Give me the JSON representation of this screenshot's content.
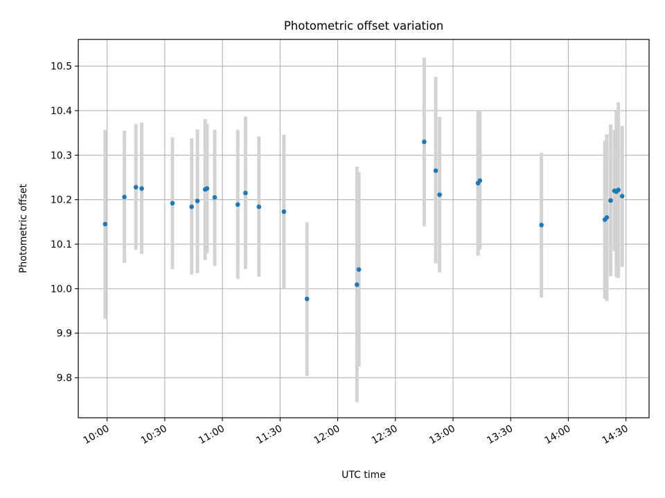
{
  "chart_data": {
    "type": "scatter",
    "title": "Photometric offset variation",
    "xlabel": "UTC time",
    "ylabel": "Photometric offset",
    "grid": true,
    "legend": "none",
    "xlim": [
      "09:45",
      "14:42"
    ],
    "ylim": [
      9.71,
      10.56
    ],
    "x_ticks": [
      "10:00",
      "10:30",
      "11:00",
      "11:30",
      "12:00",
      "12:30",
      "13:00",
      "13:30",
      "14:00",
      "14:30"
    ],
    "y_ticks": [
      9.8,
      9.9,
      10.0,
      10.1,
      10.2,
      10.3,
      10.4,
      10.5
    ],
    "y_tick_labels": [
      "9.8",
      "9.9",
      "10.0",
      "10.1",
      "10.2",
      "10.3",
      "10.4",
      "10.5"
    ],
    "colors": {
      "points": "#1f77b4",
      "errorbars": "#d3d3d3",
      "grid": "#b0b0b0"
    },
    "points": [
      {
        "x": "09:59",
        "y": 10.145,
        "low": 9.932,
        "high": 10.357
      },
      {
        "x": "10:09",
        "y": 10.206,
        "low": 10.058,
        "high": 10.355
      },
      {
        "x": "10:15",
        "y": 10.228,
        "low": 10.087,
        "high": 10.37
      },
      {
        "x": "10:18",
        "y": 10.225,
        "low": 10.078,
        "high": 10.373
      },
      {
        "x": "10:34",
        "y": 10.192,
        "low": 10.044,
        "high": 10.34
      },
      {
        "x": "10:44",
        "y": 10.184,
        "low": 10.032,
        "high": 10.338
      },
      {
        "x": "10:47",
        "y": 10.197,
        "low": 10.035,
        "high": 10.358
      },
      {
        "x": "10:51",
        "y": 10.223,
        "low": 10.064,
        "high": 10.381
      },
      {
        "x": "10:52",
        "y": 10.225,
        "low": 10.08,
        "high": 10.37
      },
      {
        "x": "10:56",
        "y": 10.205,
        "low": 10.051,
        "high": 10.357
      },
      {
        "x": "11:08",
        "y": 10.189,
        "low": 10.022,
        "high": 10.357
      },
      {
        "x": "11:12",
        "y": 10.215,
        "low": 10.044,
        "high": 10.387
      },
      {
        "x": "11:19",
        "y": 10.184,
        "low": 10.027,
        "high": 10.342
      },
      {
        "x": "11:32",
        "y": 10.173,
        "low": 10.0,
        "high": 10.346
      },
      {
        "x": "11:44",
        "y": 9.977,
        "low": 9.804,
        "high": 10.149
      },
      {
        "x": "12:10",
        "y": 10.009,
        "low": 9.745,
        "high": 10.274
      },
      {
        "x": "12:11",
        "y": 10.043,
        "low": 9.825,
        "high": 10.262
      },
      {
        "x": "12:45",
        "y": 10.33,
        "low": 10.14,
        "high": 10.519
      },
      {
        "x": "12:51",
        "y": 10.265,
        "low": 10.057,
        "high": 10.476
      },
      {
        "x": "12:53",
        "y": 10.211,
        "low": 10.037,
        "high": 10.386
      },
      {
        "x": "13:13",
        "y": 10.237,
        "low": 10.074,
        "high": 10.4
      },
      {
        "x": "13:14",
        "y": 10.243,
        "low": 10.088,
        "high": 10.398
      },
      {
        "x": "13:46",
        "y": 10.143,
        "low": 9.98,
        "high": 10.305
      },
      {
        "x": "14:19",
        "y": 10.155,
        "low": 9.977,
        "high": 10.333
      },
      {
        "x": "14:20",
        "y": 10.16,
        "low": 9.972,
        "high": 10.347
      },
      {
        "x": "14:22",
        "y": 10.198,
        "low": 10.028,
        "high": 10.369
      },
      {
        "x": "14:24",
        "y": 10.22,
        "low": 10.084,
        "high": 10.357
      },
      {
        "x": "14:25",
        "y": 10.218,
        "low": 10.026,
        "high": 10.399
      },
      {
        "x": "14:26",
        "y": 10.222,
        "low": 10.024,
        "high": 10.419
      },
      {
        "x": "14:28",
        "y": 10.208,
        "low": 10.049,
        "high": 10.366
      }
    ]
  }
}
